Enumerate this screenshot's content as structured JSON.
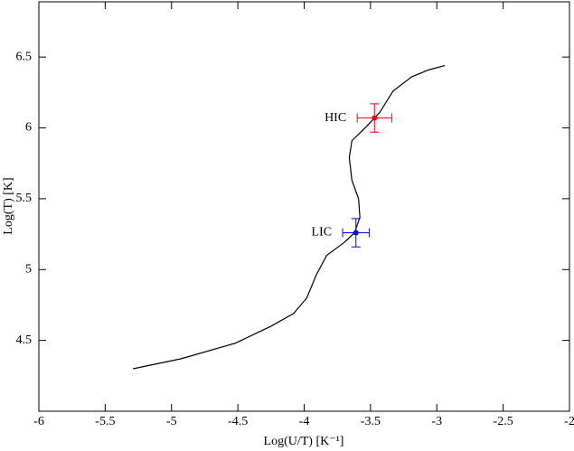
{
  "chart_data": {
    "type": "line",
    "xlabel": "Log(U/T) [K⁻¹]",
    "ylabel": "Log(T) [K]",
    "xlim": [
      -6,
      -2
    ],
    "ylim": [
      4.0,
      6.89
    ],
    "xticks": [
      -6,
      -5.5,
      -5,
      -4.5,
      -4,
      -3.5,
      -3,
      -2.5,
      -2
    ],
    "yticks": [
      4.5,
      5,
      5.5,
      6,
      6.5
    ],
    "series": [
      {
        "color": "#000000",
        "x": [
          -5.29,
          -4.93,
          -4.52,
          -4.25,
          -4.08,
          -3.98,
          -3.91,
          -3.83,
          -3.7,
          -3.62,
          -3.58,
          -3.59,
          -3.64,
          -3.66,
          -3.64,
          -3.53,
          -3.43,
          -3.33,
          -3.19,
          -3.06,
          -2.94
        ],
        "values": [
          4.3,
          4.37,
          4.48,
          4.6,
          4.69,
          4.8,
          4.96,
          5.1,
          5.19,
          5.26,
          5.37,
          5.5,
          5.63,
          5.79,
          5.91,
          6.01,
          6.11,
          6.26,
          6.36,
          6.41,
          6.44
        ]
      }
    ],
    "points": [
      {
        "name": "HIC",
        "color": "#ff0000",
        "x": -3.47,
        "y": 6.07,
        "xerr": 0.13,
        "yerr": 0.1
      },
      {
        "name": "LIC",
        "color": "#0000ff",
        "x": -3.61,
        "y": 5.26,
        "xerr": 0.1,
        "yerr": 0.1
      }
    ]
  }
}
